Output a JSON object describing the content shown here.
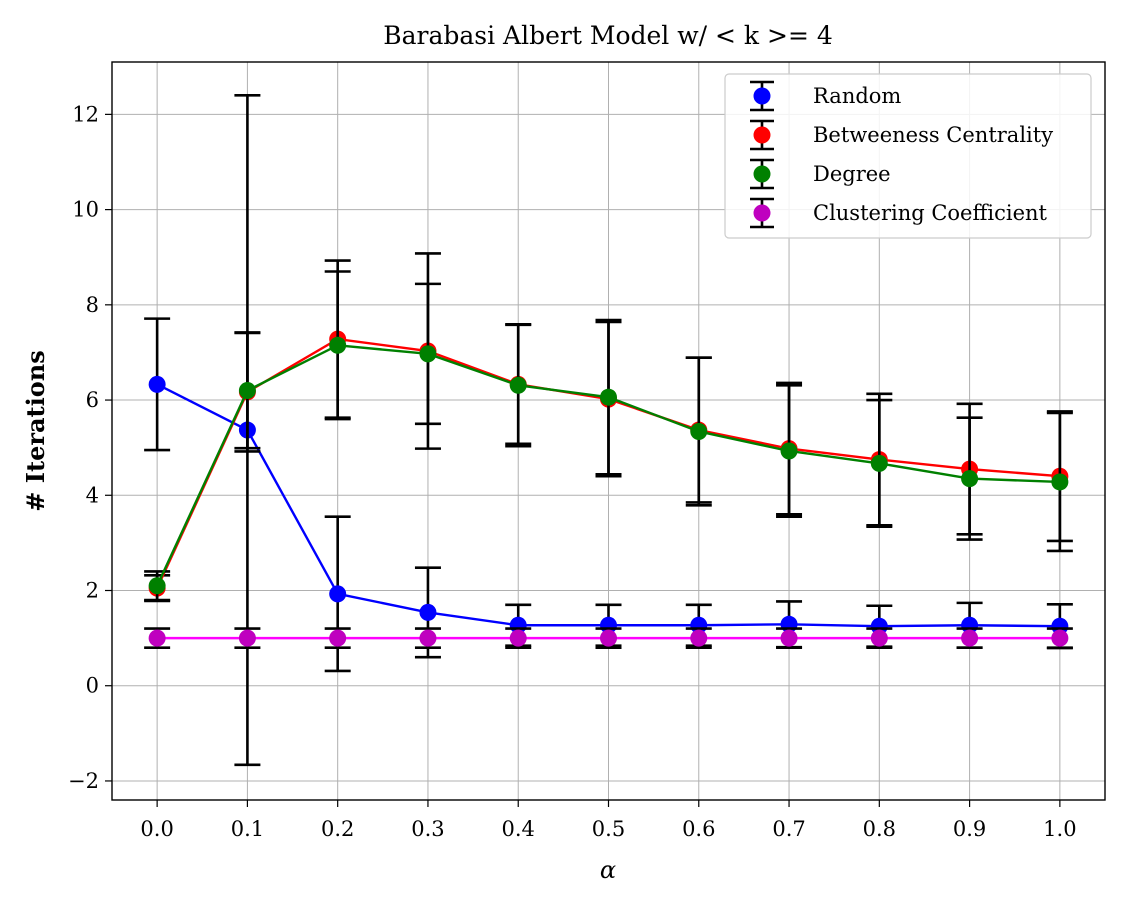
{
  "chart_data": {
    "type": "line",
    "title": "Barabasi Albert Model w/ < k >= 4",
    "xlabel": "α",
    "ylabel": "# Iterations",
    "xlim": [
      -0.05,
      1.05
    ],
    "ylim": [
      -2.4,
      13.1
    ],
    "x": [
      0.0,
      0.1,
      0.2,
      0.3,
      0.4,
      0.5,
      0.6,
      0.7,
      0.8,
      0.9,
      1.0
    ],
    "xticks": [
      "0.0",
      "0.1",
      "0.2",
      "0.3",
      "0.4",
      "0.5",
      "0.6",
      "0.7",
      "0.8",
      "0.9",
      "1.0"
    ],
    "yticks": [
      {
        "value": -2,
        "label": "−2"
      },
      {
        "value": 0,
        "label": "0"
      },
      {
        "value": 2,
        "label": "2"
      },
      {
        "value": 4,
        "label": "4"
      },
      {
        "value": 6,
        "label": "6"
      },
      {
        "value": 8,
        "label": "8"
      },
      {
        "value": 10,
        "label": "10"
      },
      {
        "value": 12,
        "label": "12"
      }
    ],
    "grid": true,
    "legend_position": "top-right",
    "series": [
      {
        "name": "Random",
        "color": "#0000ff",
        "values": [
          6.33,
          5.37,
          1.93,
          1.54,
          1.27,
          1.27,
          1.27,
          1.29,
          1.25,
          1.27,
          1.25
        ],
        "errors": [
          1.38,
          7.03,
          1.62,
          0.94,
          0.43,
          0.43,
          0.43,
          0.48,
          0.43,
          0.47,
          0.46
        ]
      },
      {
        "name": "Betweeness Centrality",
        "color": "#ff0000",
        "values": [
          2.05,
          6.17,
          7.28,
          7.03,
          6.33,
          6.02,
          5.37,
          4.98,
          4.75,
          4.55,
          4.4
        ],
        "errors": [
          0.27,
          1.25,
          1.65,
          2.05,
          1.25,
          1.62,
          1.52,
          1.38,
          1.38,
          1.37,
          1.36
        ]
      },
      {
        "name": "Degree",
        "color": "#008000",
        "values": [
          2.1,
          6.2,
          7.15,
          6.97,
          6.31,
          6.06,
          5.34,
          4.93,
          4.67,
          4.35,
          4.28
        ],
        "errors": [
          0.3,
          1.21,
          1.55,
          1.47,
          1.28,
          1.62,
          1.55,
          1.38,
          1.33,
          1.28,
          1.45
        ]
      },
      {
        "name": "Clustering Coefficient",
        "color": "#ff00ff",
        "marker_color": "#bf00bf",
        "values": [
          1.0,
          1.0,
          1.0,
          1.0,
          1.0,
          1.0,
          1.0,
          1.0,
          1.0,
          1.0,
          1.0
        ],
        "errors": [
          0.2,
          0.2,
          0.2,
          0.2,
          0.2,
          0.2,
          0.2,
          0.2,
          0.2,
          0.2,
          0.2
        ]
      }
    ]
  }
}
